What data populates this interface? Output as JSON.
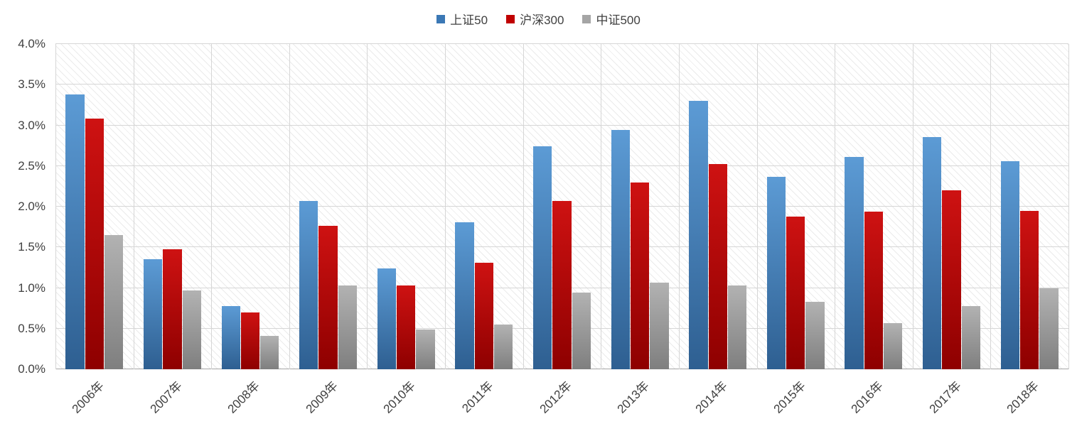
{
  "chart_data": {
    "type": "bar",
    "title": "",
    "xlabel": "",
    "ylabel": "",
    "categories": [
      "2006年",
      "2007年",
      "2008年",
      "2009年",
      "2010年",
      "2011年",
      "2012年",
      "2013年",
      "2014年",
      "2015年",
      "2016年",
      "2017年",
      "2018年"
    ],
    "series": [
      {
        "name": "上证50",
        "color": "#3B78B5",
        "color_top": "#5C9BD5",
        "color_bottom": "#2E5F91",
        "values": [
          3.38,
          1.35,
          0.78,
          2.07,
          1.24,
          1.81,
          2.74,
          2.94,
          3.3,
          2.37,
          2.61,
          2.86,
          2.56
        ]
      },
      {
        "name": "沪深300",
        "color": "#C00000",
        "color_top": "#CE1212",
        "color_bottom": "#8E0000",
        "values": [
          3.08,
          1.48,
          0.7,
          1.76,
          1.03,
          1.31,
          2.07,
          2.3,
          2.52,
          1.88,
          1.94,
          2.2,
          1.95
        ]
      },
      {
        "name": "中证500",
        "color": "#A5A5A5",
        "color_top": "#B2B2B2",
        "color_bottom": "#7F7F7F",
        "values": [
          1.65,
          0.97,
          0.41,
          1.03,
          0.49,
          0.55,
          0.94,
          1.07,
          1.03,
          0.83,
          0.57,
          0.78,
          1.0
        ]
      }
    ],
    "ylim": [
      0,
      4
    ],
    "ytick_step": 0.5,
    "ytick_labels": [
      "0.0%",
      "0.5%",
      "1.0%",
      "1.5%",
      "2.0%",
      "2.5%",
      "3.0%",
      "3.5%",
      "4.0%"
    ],
    "grid": true,
    "legend_position": "top",
    "plot_background": "diagonal-hatch"
  }
}
